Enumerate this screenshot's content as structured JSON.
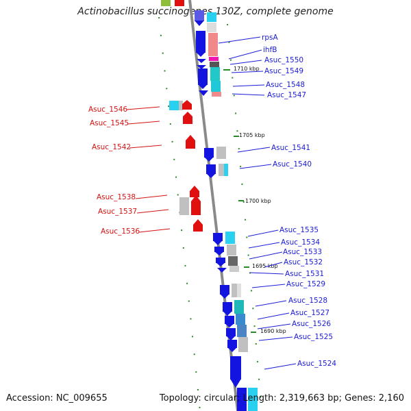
{
  "title": "Actinobacillus succinogenes 130Z, complete genome",
  "footer": {
    "accession": "Accession: NC_009655",
    "summary": "Topology: circular; Length: 2,319,663 bp; Genes: 2,160"
  },
  "colors": {
    "forward_label": "#1a1ad6",
    "reverse_label": "#d41010",
    "forward_cds": "#1414e0",
    "reverse_cds": "#e01010",
    "tick": "#2a8a2a",
    "backbone": "#8a8a8a"
  },
  "kbp_markers": [
    "1710 kbp",
    "1705 kbp",
    "1700 kbp",
    "1695 kbp",
    "1690 kbp"
  ],
  "forward_genes": [
    "rpsA",
    "ihfB",
    "Asuc_1550",
    "Asuc_1549",
    "Asuc_1548",
    "Asuc_1547",
    "Asuc_1541",
    "Asuc_1540",
    "Asuc_1535",
    "Asuc_1534",
    "Asuc_1533",
    "Asuc_1532",
    "Asuc_1531",
    "Asuc_1529",
    "Asuc_1528",
    "Asuc_1527",
    "Asuc_1526",
    "Asuc_1525",
    "Asuc_1524"
  ],
  "reverse_genes": [
    "Asuc_1546",
    "Asuc_1545",
    "Asuc_1542",
    "Asuc_1538",
    "Asuc_1537",
    "Asuc_1536"
  ]
}
